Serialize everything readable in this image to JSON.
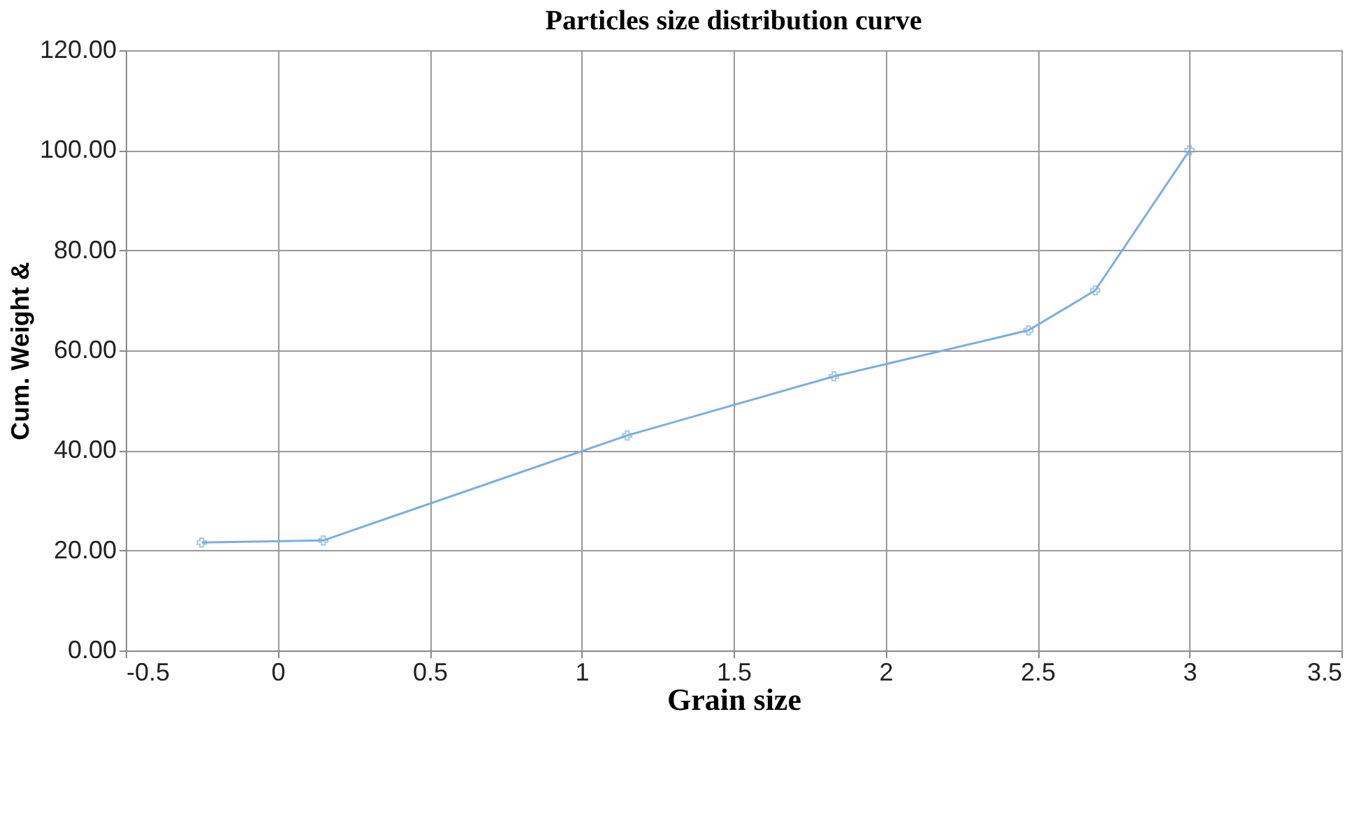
{
  "chart_data": {
    "type": "line",
    "title": "Particles size distribution curve",
    "xlabel": "Grain size",
    "ylabel": "Cum. Weight &",
    "x": [
      -0.25,
      0.15,
      1.15,
      1.83,
      2.47,
      2.69,
      3.0
    ],
    "series": [
      {
        "color": "#7aaee0",
        "values": [
          21.6,
          22.0,
          43.0,
          54.8,
          64.0,
          72.0,
          100.0
        ]
      }
    ],
    "xlim": [
      -0.5,
      3.5
    ],
    "xticks": [
      -0.5,
      0,
      0.5,
      1,
      1.5,
      2,
      2.5,
      3,
      3.5
    ],
    "ylim": [
      0,
      120
    ],
    "yticks": [
      {
        "value": 0,
        "label": "0.00"
      },
      {
        "value": 20,
        "label": "20.00"
      },
      {
        "value": 40,
        "label": "40.00"
      },
      {
        "value": 60,
        "label": "60.00"
      },
      {
        "value": 80,
        "label": "80.00"
      },
      {
        "value": 100,
        "label": "100.00"
      },
      {
        "value": 120,
        "label": "120.00"
      }
    ],
    "grid": true,
    "marker": "cross",
    "line_style": "solid"
  }
}
